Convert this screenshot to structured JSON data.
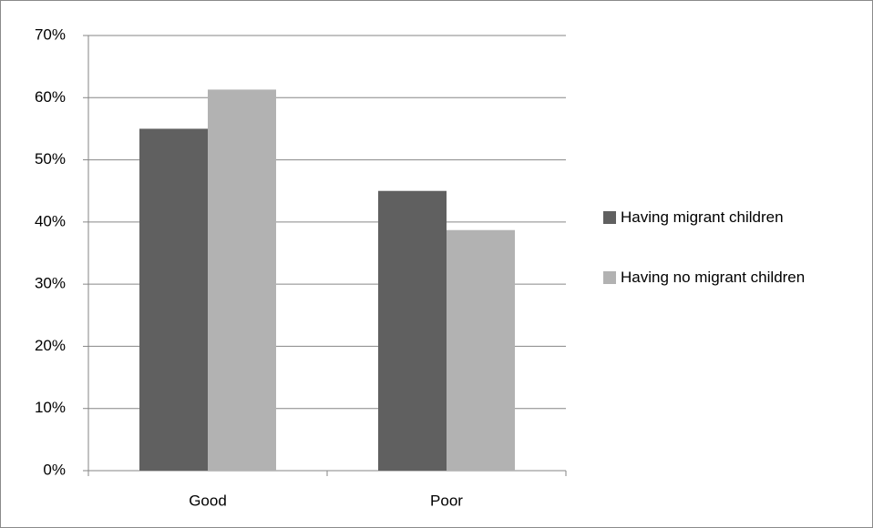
{
  "chart_data": {
    "type": "bar",
    "categories": [
      "Good",
      "Poor"
    ],
    "series": [
      {
        "name": "Having migrant children",
        "color": "#606060",
        "values": [
          55,
          45
        ]
      },
      {
        "name": "Having no migrant children",
        "color": "#b2b2b2",
        "values": [
          61.3,
          38.7
        ]
      }
    ],
    "ylim": [
      0,
      70
    ],
    "yticks": [
      {
        "value": 0,
        "label": "0%"
      },
      {
        "value": 10,
        "label": "10%"
      },
      {
        "value": 20,
        "label": "20%"
      },
      {
        "value": 30,
        "label": "30%"
      },
      {
        "value": 40,
        "label": "40%"
      },
      {
        "value": 50,
        "label": "50%"
      },
      {
        "value": 60,
        "label": "60%"
      },
      {
        "value": 70,
        "label": "70%"
      }
    ],
    "grid": true,
    "legend": "right"
  }
}
